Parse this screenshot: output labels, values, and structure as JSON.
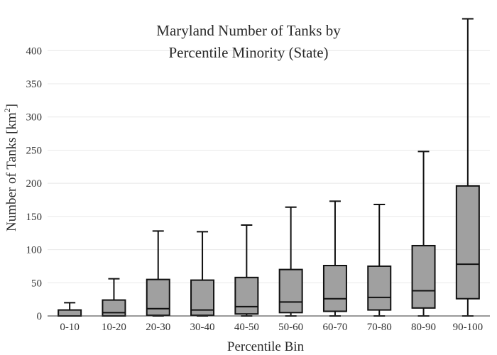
{
  "chart_data": {
    "type": "box",
    "title": "Maryland Number of Tanks by",
    "subtitle": "Percentile Minority (State)",
    "xlabel": "Percentile Bin",
    "ylabel": "Number of Tanks  [km",
    "ylabel_sup": "2",
    "ylabel_close": "]",
    "ylim": [
      0,
      450
    ],
    "yticks": [
      0,
      50,
      100,
      150,
      200,
      250,
      300,
      350,
      400
    ],
    "grid": true,
    "box_fill": "#a0a0a0",
    "line_color": "#111111",
    "categories": [
      "0-10",
      "10-20",
      "20-30",
      "30-40",
      "40-50",
      "50-60",
      "60-70",
      "70-80",
      "80-90",
      "90-100"
    ],
    "boxes": [
      {
        "min": 0,
        "q1": 0,
        "median": 0,
        "q3": 9,
        "max": 20
      },
      {
        "min": 0,
        "q1": 0,
        "median": 5,
        "q3": 24,
        "max": 56
      },
      {
        "min": 0,
        "q1": 1,
        "median": 11,
        "q3": 55,
        "max": 128
      },
      {
        "min": 0,
        "q1": 1,
        "median": 9,
        "q3": 54,
        "max": 127
      },
      {
        "min": 0,
        "q1": 3,
        "median": 14,
        "q3": 58,
        "max": 137
      },
      {
        "min": 0,
        "q1": 5,
        "median": 21,
        "q3": 70,
        "max": 164
      },
      {
        "min": 0,
        "q1": 7,
        "median": 26,
        "q3": 76,
        "max": 173
      },
      {
        "min": 0,
        "q1": 9,
        "median": 28,
        "q3": 75,
        "max": 168
      },
      {
        "min": 0,
        "q1": 12,
        "median": 38,
        "q3": 106,
        "max": 248
      },
      {
        "min": 0,
        "q1": 26,
        "median": 78,
        "q3": 196,
        "max": 448
      }
    ]
  }
}
